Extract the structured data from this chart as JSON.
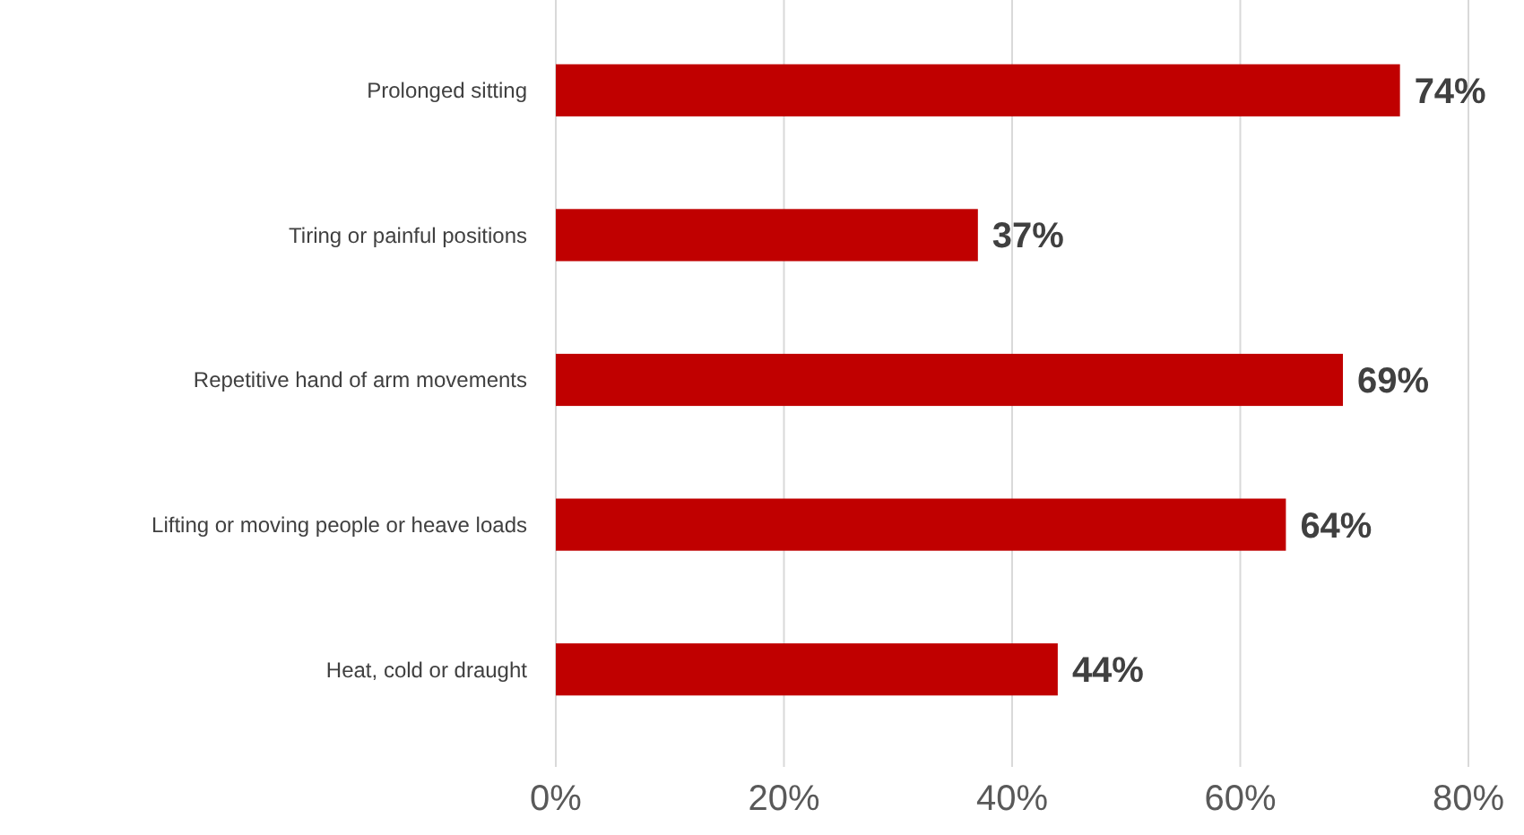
{
  "chart_data": {
    "type": "bar",
    "orientation": "horizontal",
    "categories": [
      "Prolonged sitting",
      "Tiring or painful positions",
      "Repetitive hand of arm movements",
      "Lifting or moving people or heave loads",
      "Heat, cold or draught"
    ],
    "values": [
      74,
      37,
      69,
      64,
      44
    ],
    "value_labels": [
      "74%",
      "37%",
      "69%",
      "64%",
      "44%"
    ],
    "color": "#c00000",
    "xlim": [
      0,
      80
    ],
    "xticks": [
      {
        "value": 0,
        "label": "0%"
      },
      {
        "value": 20,
        "label": "20%"
      },
      {
        "value": 40,
        "label": "40%"
      },
      {
        "value": 60,
        "label": "60%"
      },
      {
        "value": 80,
        "label": "80%"
      }
    ],
    "grid": "x"
  }
}
